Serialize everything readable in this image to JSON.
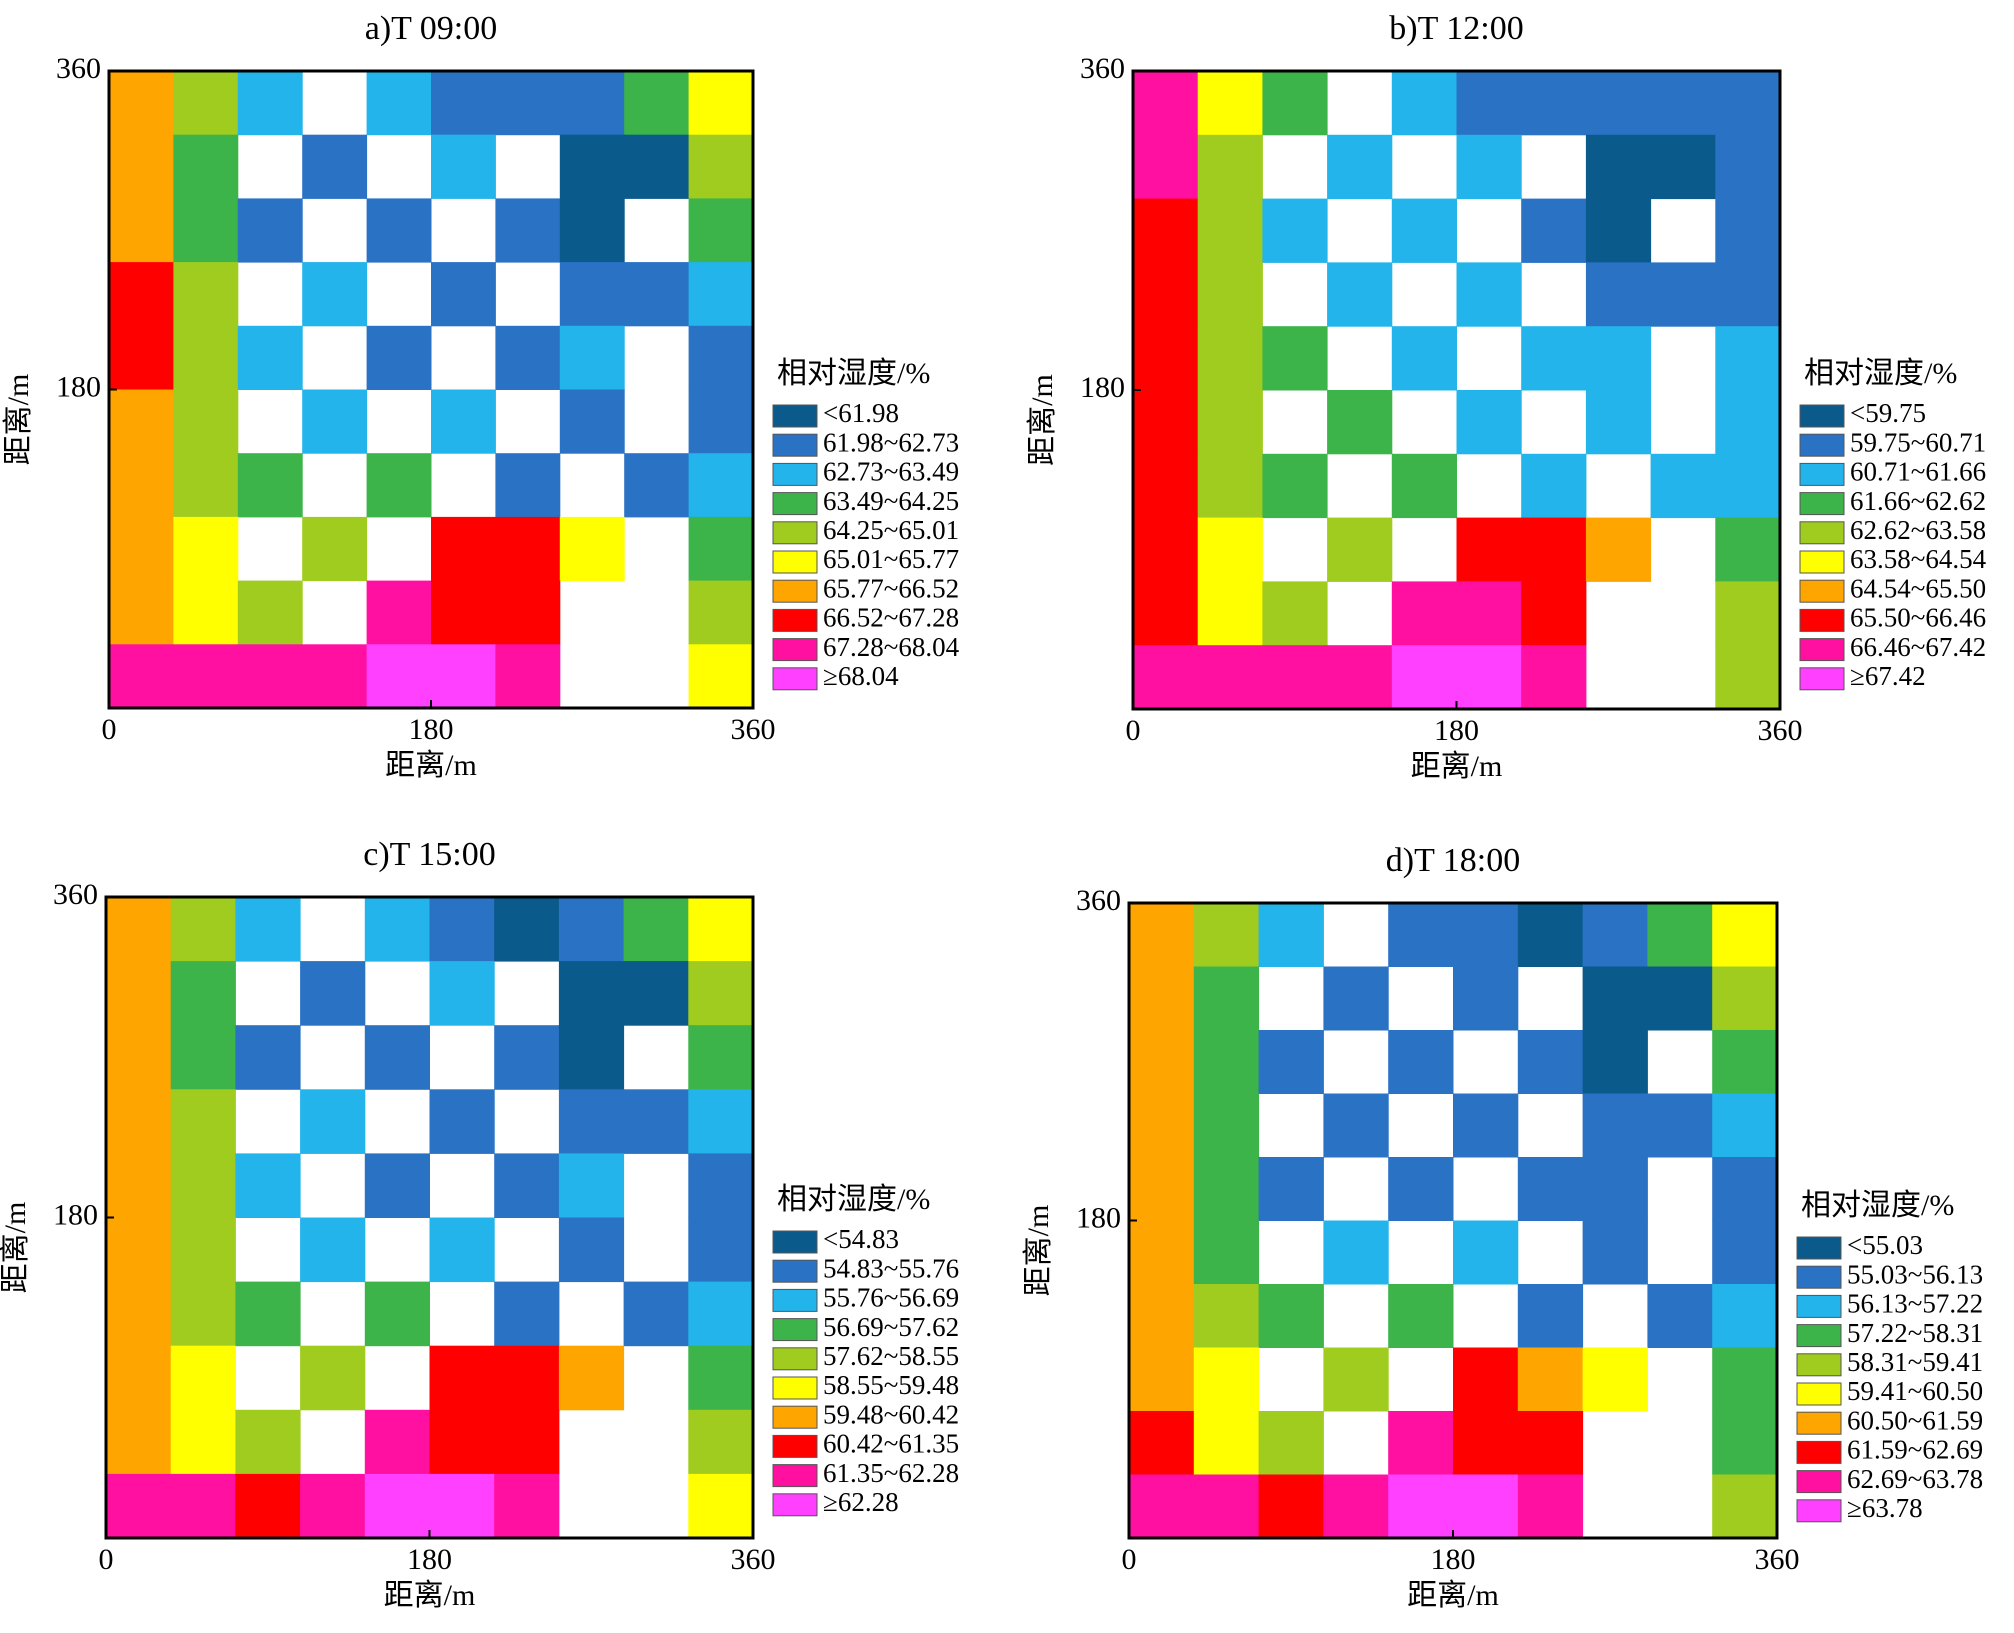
{
  "chart_data": [
    {
      "type": "heatmap",
      "title": "a)T 09:00",
      "xlabel": "距离/m",
      "ylabel": "距离/m",
      "xlim": [
        0,
        360
      ],
      "ylim": [
        0,
        360
      ],
      "xticks": [
        0,
        180,
        360
      ],
      "yticks": [
        180,
        360
      ],
      "legend_title": "相对湿度/%",
      "legend_labels": [
        "<61.98",
        "61.98~62.73",
        "62.73~63.49",
        "63.49~64.25",
        "64.25~65.01",
        "65.01~65.77",
        "65.77~66.52",
        "66.52~67.28",
        "67.28~68.04",
        "≥68.04"
      ],
      "colors": [
        "#0a5a8c",
        "#2a72c4",
        "#22b4ea",
        "#3cb44a",
        "#a0cc20",
        "#ffff00",
        "#ffa500",
        "#ff0000",
        "#ff10a0",
        "#ff40ff"
      ],
      "classes": [
        [
          6,
          4,
          2,
          null,
          2,
          1,
          1,
          1,
          3,
          5
        ],
        [
          6,
          3,
          null,
          1,
          null,
          2,
          null,
          0,
          0,
          4
        ],
        [
          6,
          3,
          1,
          null,
          1,
          null,
          1,
          0,
          null,
          3
        ],
        [
          7,
          4,
          null,
          2,
          null,
          1,
          null,
          1,
          1,
          2
        ],
        [
          7,
          4,
          2,
          null,
          1,
          null,
          1,
          2,
          null,
          1
        ],
        [
          6,
          4,
          null,
          2,
          null,
          2,
          null,
          1,
          null,
          1
        ],
        [
          6,
          4,
          3,
          null,
          3,
          null,
          1,
          null,
          1,
          2
        ],
        [
          6,
          5,
          null,
          4,
          null,
          7,
          7,
          5,
          null,
          3
        ],
        [
          6,
          5,
          4,
          null,
          8,
          7,
          7,
          null,
          null,
          4
        ],
        [
          8,
          8,
          8,
          8,
          9,
          9,
          8,
          null,
          null,
          5
        ]
      ]
    },
    {
      "type": "heatmap",
      "title": "b)T 12:00",
      "xlabel": "距离/m",
      "ylabel": "距离/m",
      "xlim": [
        0,
        360
      ],
      "ylim": [
        0,
        360
      ],
      "xticks": [
        0,
        180,
        360
      ],
      "yticks": [
        180,
        360
      ],
      "legend_title": "相对湿度/%",
      "legend_labels": [
        "<59.75",
        "59.75~60.71",
        "60.71~61.66",
        "61.66~62.62",
        "62.62~63.58",
        "63.58~64.54",
        "64.54~65.50",
        "65.50~66.46",
        "66.46~67.42",
        "≥67.42"
      ],
      "colors": [
        "#0a5a8c",
        "#2a72c4",
        "#22b4ea",
        "#3cb44a",
        "#a0cc20",
        "#ffff00",
        "#ffa500",
        "#ff0000",
        "#ff10a0",
        "#ff40ff"
      ],
      "classes": [
        [
          8,
          5,
          3,
          null,
          2,
          1,
          1,
          1,
          1,
          1
        ],
        [
          8,
          4,
          null,
          2,
          null,
          2,
          null,
          0,
          0,
          1
        ],
        [
          7,
          4,
          2,
          null,
          2,
          null,
          1,
          0,
          null,
          1
        ],
        [
          7,
          4,
          null,
          2,
          null,
          2,
          null,
          1,
          1,
          1
        ],
        [
          7,
          4,
          3,
          null,
          2,
          null,
          2,
          2,
          null,
          2
        ],
        [
          7,
          4,
          null,
          3,
          null,
          2,
          null,
          2,
          null,
          2
        ],
        [
          7,
          4,
          3,
          null,
          3,
          null,
          2,
          null,
          2,
          2
        ],
        [
          7,
          5,
          null,
          4,
          null,
          7,
          7,
          6,
          null,
          3
        ],
        [
          7,
          5,
          4,
          null,
          8,
          8,
          7,
          null,
          null,
          4
        ],
        [
          8,
          8,
          8,
          8,
          9,
          9,
          8,
          null,
          null,
          4
        ]
      ]
    },
    {
      "type": "heatmap",
      "title": "c)T 15:00",
      "xlabel": "距离/m",
      "ylabel": "距离/m",
      "xlim": [
        0,
        360
      ],
      "ylim": [
        0,
        360
      ],
      "xticks": [
        0,
        180,
        360
      ],
      "yticks": [
        180,
        360
      ],
      "legend_title": "相对湿度/%",
      "legend_labels": [
        "<54.83",
        "54.83~55.76",
        "55.76~56.69",
        "56.69~57.62",
        "57.62~58.55",
        "58.55~59.48",
        "59.48~60.42",
        "60.42~61.35",
        "61.35~62.28",
        "≥62.28"
      ],
      "colors": [
        "#0a5a8c",
        "#2a72c4",
        "#22b4ea",
        "#3cb44a",
        "#a0cc20",
        "#ffff00",
        "#ffa500",
        "#ff0000",
        "#ff10a0",
        "#ff40ff"
      ],
      "classes": [
        [
          6,
          4,
          2,
          null,
          2,
          1,
          0,
          1,
          3,
          5
        ],
        [
          6,
          3,
          null,
          1,
          null,
          2,
          null,
          0,
          0,
          4
        ],
        [
          6,
          3,
          1,
          null,
          1,
          null,
          1,
          0,
          null,
          3
        ],
        [
          6,
          4,
          null,
          2,
          null,
          1,
          null,
          1,
          1,
          2
        ],
        [
          6,
          4,
          2,
          null,
          1,
          null,
          1,
          2,
          null,
          1
        ],
        [
          6,
          4,
          null,
          2,
          null,
          2,
          null,
          1,
          null,
          1
        ],
        [
          6,
          4,
          3,
          null,
          3,
          null,
          1,
          null,
          1,
          2
        ],
        [
          6,
          5,
          null,
          4,
          null,
          7,
          7,
          6,
          null,
          3
        ],
        [
          6,
          5,
          4,
          null,
          8,
          7,
          7,
          null,
          null,
          4
        ],
        [
          8,
          8,
          7,
          8,
          9,
          9,
          8,
          null,
          null,
          5
        ]
      ]
    },
    {
      "type": "heatmap",
      "title": "d)T 18:00",
      "xlabel": "距离/m",
      "ylabel": "距离/m",
      "xlim": [
        0,
        360
      ],
      "ylim": [
        0,
        360
      ],
      "xticks": [
        0,
        180,
        360
      ],
      "yticks": [
        180,
        360
      ],
      "legend_title": "相对湿度/%",
      "legend_labels": [
        "<55.03",
        "55.03~56.13",
        "56.13~57.22",
        "57.22~58.31",
        "58.31~59.41",
        "59.41~60.50",
        "60.50~61.59",
        "61.59~62.69",
        "62.69~63.78",
        "≥63.78"
      ],
      "colors": [
        "#0a5a8c",
        "#2a72c4",
        "#22b4ea",
        "#3cb44a",
        "#a0cc20",
        "#ffff00",
        "#ffa500",
        "#ff0000",
        "#ff10a0",
        "#ff40ff"
      ],
      "classes": [
        [
          6,
          4,
          2,
          null,
          1,
          1,
          0,
          1,
          3,
          5
        ],
        [
          6,
          3,
          null,
          1,
          null,
          1,
          null,
          0,
          0,
          4
        ],
        [
          6,
          3,
          1,
          null,
          1,
          null,
          1,
          0,
          null,
          3
        ],
        [
          6,
          3,
          null,
          1,
          null,
          1,
          null,
          1,
          1,
          2
        ],
        [
          6,
          3,
          1,
          null,
          1,
          null,
          1,
          1,
          null,
          1
        ],
        [
          6,
          3,
          null,
          2,
          null,
          2,
          null,
          1,
          null,
          1
        ],
        [
          6,
          4,
          3,
          null,
          3,
          null,
          1,
          null,
          1,
          2
        ],
        [
          6,
          5,
          null,
          4,
          null,
          7,
          6,
          5,
          null,
          3
        ],
        [
          7,
          5,
          4,
          null,
          8,
          7,
          7,
          null,
          null,
          3
        ],
        [
          8,
          8,
          7,
          8,
          9,
          9,
          8,
          null,
          null,
          4
        ]
      ]
    }
  ]
}
